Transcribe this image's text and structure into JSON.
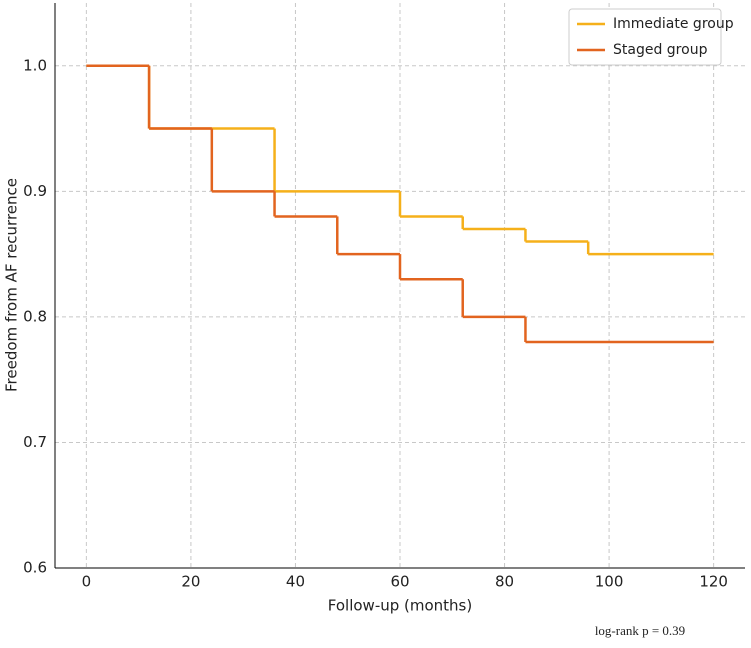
{
  "chart_data": {
    "type": "step",
    "xlabel": "Follow-up (months)",
    "ylabel": "Freedom from AF recurrence",
    "annotation": "log-rank p = 0.39",
    "series": [
      {
        "name": "Immediate group",
        "color": "#f5b01a",
        "x": [
          0,
          12,
          36,
          60,
          72,
          84,
          96,
          120
        ],
        "values": [
          1.0,
          0.95,
          0.9,
          0.88,
          0.87,
          0.86,
          0.85,
          0.85
        ]
      },
      {
        "name": "Staged group",
        "color": "#e2641f",
        "x": [
          0,
          12,
          24,
          36,
          48,
          60,
          72,
          84,
          120
        ],
        "values": [
          1.0,
          0.95,
          0.9,
          0.88,
          0.85,
          0.83,
          0.8,
          0.78,
          0.78
        ]
      }
    ],
    "xlim": [
      -6,
      126
    ],
    "ylim": [
      0.6,
      1.05
    ],
    "xticks": [
      0,
      20,
      40,
      60,
      80,
      100,
      120
    ],
    "yticks": [
      0.6,
      0.7,
      0.8,
      0.9,
      {
        "value": 1,
        "label": "1.0"
      }
    ],
    "grid": true,
    "legend": "upper right"
  }
}
